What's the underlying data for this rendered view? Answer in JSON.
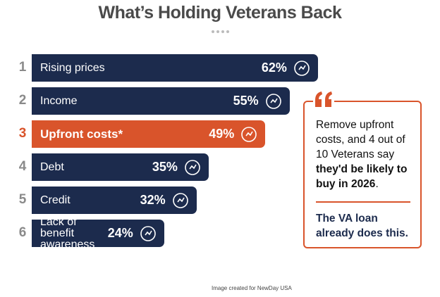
{
  "chart_data": {
    "type": "bar",
    "orientation": "horizontal",
    "title": "What’s Holding Veterans Back",
    "ranks": [
      "1",
      "2",
      "3",
      "4",
      "5",
      "6"
    ],
    "categories": [
      "Rising prices",
      "Income",
      "Upfront costs*",
      "Debt",
      "Credit",
      "Lack of benefit awareness"
    ],
    "values": [
      62,
      55,
      49,
      35,
      32,
      24
    ],
    "value_labels": [
      "62%",
      "55%",
      "49%",
      "35%",
      "32%",
      "24%"
    ],
    "color": "#1c2b4d",
    "highlight_color": "#d9542b",
    "rank_color": "#8a8a8a",
    "highlight": 2,
    "callout": {
      "text_parts": [
        "Remove upfront costs, and 4 out of 10 Veterans say ",
        "they'd be likely to buy in 2026",
        "."
      ],
      "emphasis": "The VA loan already does this."
    },
    "footer": "Image created for NewDay USA"
  }
}
